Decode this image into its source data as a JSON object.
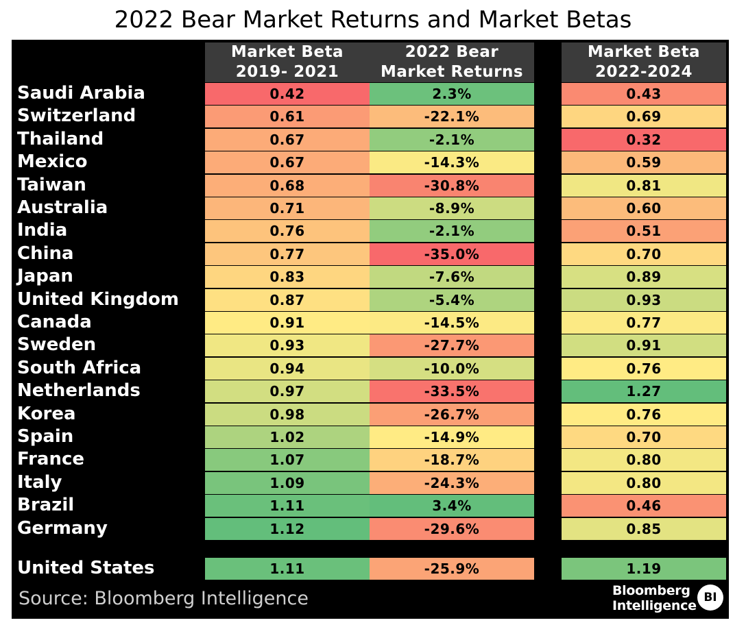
{
  "title": "2022 Bear Market Returns and Market Betas",
  "source": "Source: Bloomberg Intelligence",
  "logo": {
    "line1": "Bloomberg",
    "line2": "Intelligence",
    "badge": "BI"
  },
  "colors": {
    "red": "#f8696b",
    "yellow": "#ffeb84",
    "green": "#63be7b",
    "header": "#3b3b3b",
    "background": "#000000"
  },
  "chart_data": {
    "type": "table",
    "title": "2022 Bear Market Returns and Market Betas",
    "columns": [
      {
        "line1": "Market Beta",
        "line2": "2019- 2021"
      },
      {
        "line1": "2022 Bear",
        "line2": "Market Returns"
      },
      {
        "line1": "Market Beta",
        "line2": "2022-2024"
      }
    ],
    "rows": [
      {
        "country": "Saudi Arabia",
        "beta_2019_2021": "0.42",
        "bear_return_2022": "2.3%",
        "beta_2022_2024": "0.43"
      },
      {
        "country": "Switzerland",
        "beta_2019_2021": "0.61",
        "bear_return_2022": "-22.1%",
        "beta_2022_2024": "0.69"
      },
      {
        "country": "Thailand",
        "beta_2019_2021": "0.67",
        "bear_return_2022": "-2.1%",
        "beta_2022_2024": "0.32"
      },
      {
        "country": "Mexico",
        "beta_2019_2021": "0.67",
        "bear_return_2022": "-14.3%",
        "beta_2022_2024": "0.59"
      },
      {
        "country": "Taiwan",
        "beta_2019_2021": "0.68",
        "bear_return_2022": "-30.8%",
        "beta_2022_2024": "0.81"
      },
      {
        "country": "Australia",
        "beta_2019_2021": "0.71",
        "bear_return_2022": "-8.9%",
        "beta_2022_2024": "0.60"
      },
      {
        "country": "India",
        "beta_2019_2021": "0.76",
        "bear_return_2022": "-2.1%",
        "beta_2022_2024": "0.51"
      },
      {
        "country": "China",
        "beta_2019_2021": "0.77",
        "bear_return_2022": "-35.0%",
        "beta_2022_2024": "0.70"
      },
      {
        "country": "Japan",
        "beta_2019_2021": "0.83",
        "bear_return_2022": "-7.6%",
        "beta_2022_2024": "0.89"
      },
      {
        "country": "United Kingdom",
        "beta_2019_2021": "0.87",
        "bear_return_2022": "-5.4%",
        "beta_2022_2024": "0.93"
      },
      {
        "country": "Canada",
        "beta_2019_2021": "0.91",
        "bear_return_2022": "-14.5%",
        "beta_2022_2024": "0.77"
      },
      {
        "country": "Sweden",
        "beta_2019_2021": "0.93",
        "bear_return_2022": "-27.7%",
        "beta_2022_2024": "0.91"
      },
      {
        "country": "South Africa",
        "beta_2019_2021": "0.94",
        "bear_return_2022": "-10.0%",
        "beta_2022_2024": "0.76"
      },
      {
        "country": "Netherlands",
        "beta_2019_2021": "0.97",
        "bear_return_2022": "-33.5%",
        "beta_2022_2024": "1.27"
      },
      {
        "country": "Korea",
        "beta_2019_2021": "0.98",
        "bear_return_2022": "-26.7%",
        "beta_2022_2024": "0.76"
      },
      {
        "country": "Spain",
        "beta_2019_2021": "1.02",
        "bear_return_2022": "-14.9%",
        "beta_2022_2024": "0.70"
      },
      {
        "country": "France",
        "beta_2019_2021": "1.07",
        "bear_return_2022": "-18.7%",
        "beta_2022_2024": "0.80"
      },
      {
        "country": "Italy",
        "beta_2019_2021": "1.09",
        "bear_return_2022": "-24.3%",
        "beta_2022_2024": "0.80"
      },
      {
        "country": "Brazil",
        "beta_2019_2021": "1.11",
        "bear_return_2022": "3.4%",
        "beta_2022_2024": "0.46"
      },
      {
        "country": "Germany",
        "beta_2019_2021": "1.12",
        "bear_return_2022": "-29.6%",
        "beta_2022_2024": "0.85"
      }
    ],
    "us": {
      "country": "United States",
      "beta_2019_2021": "1.11",
      "bear_return_2022": "-25.9%",
      "beta_2022_2024": "1.19"
    }
  }
}
